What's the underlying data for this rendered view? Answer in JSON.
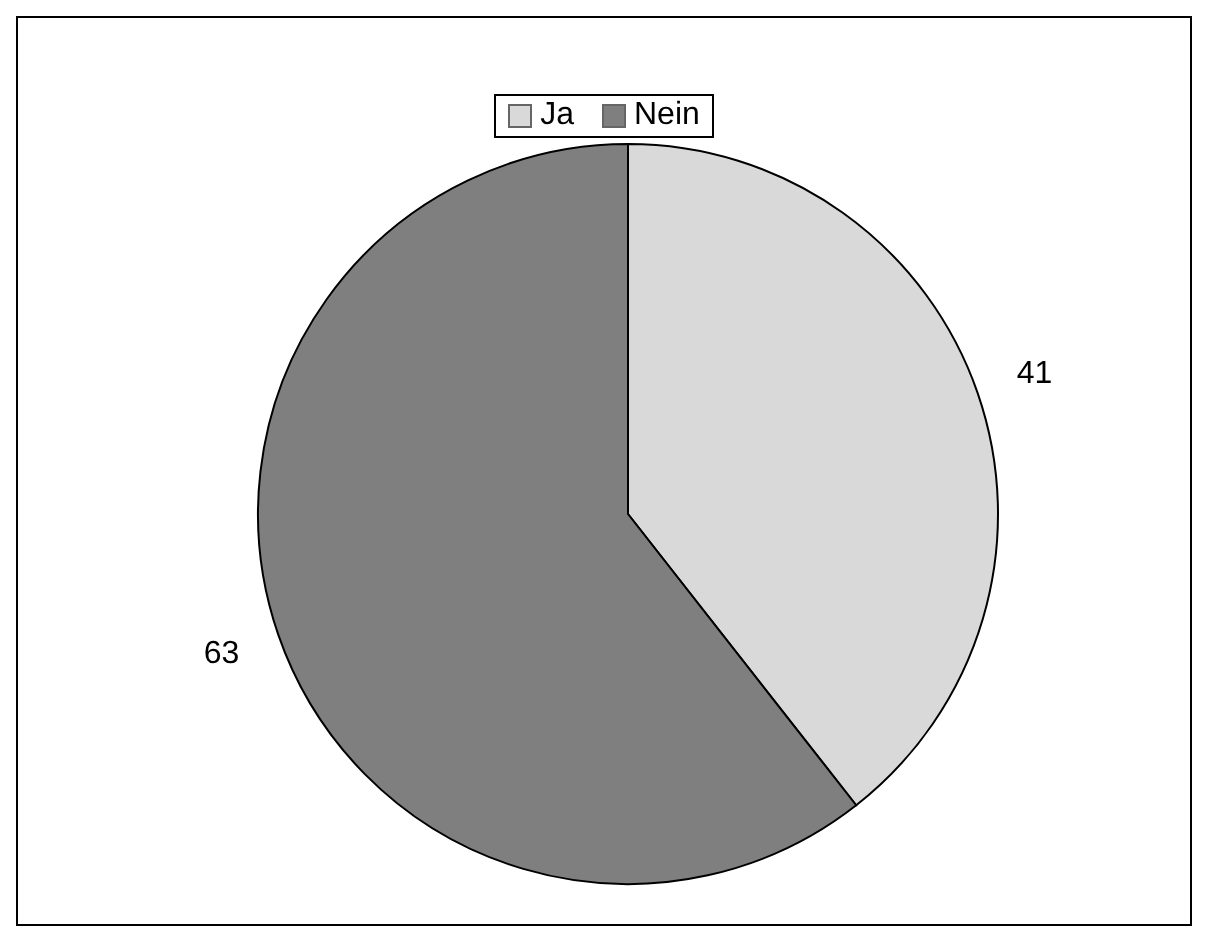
{
  "chart_data": {
    "type": "pie",
    "categories": [
      "Ja",
      "Nein"
    ],
    "values": [
      41,
      63
    ],
    "colors": [
      "#d9d9d9",
      "#7f7f7f"
    ],
    "data_labels": true,
    "legend": "top"
  }
}
